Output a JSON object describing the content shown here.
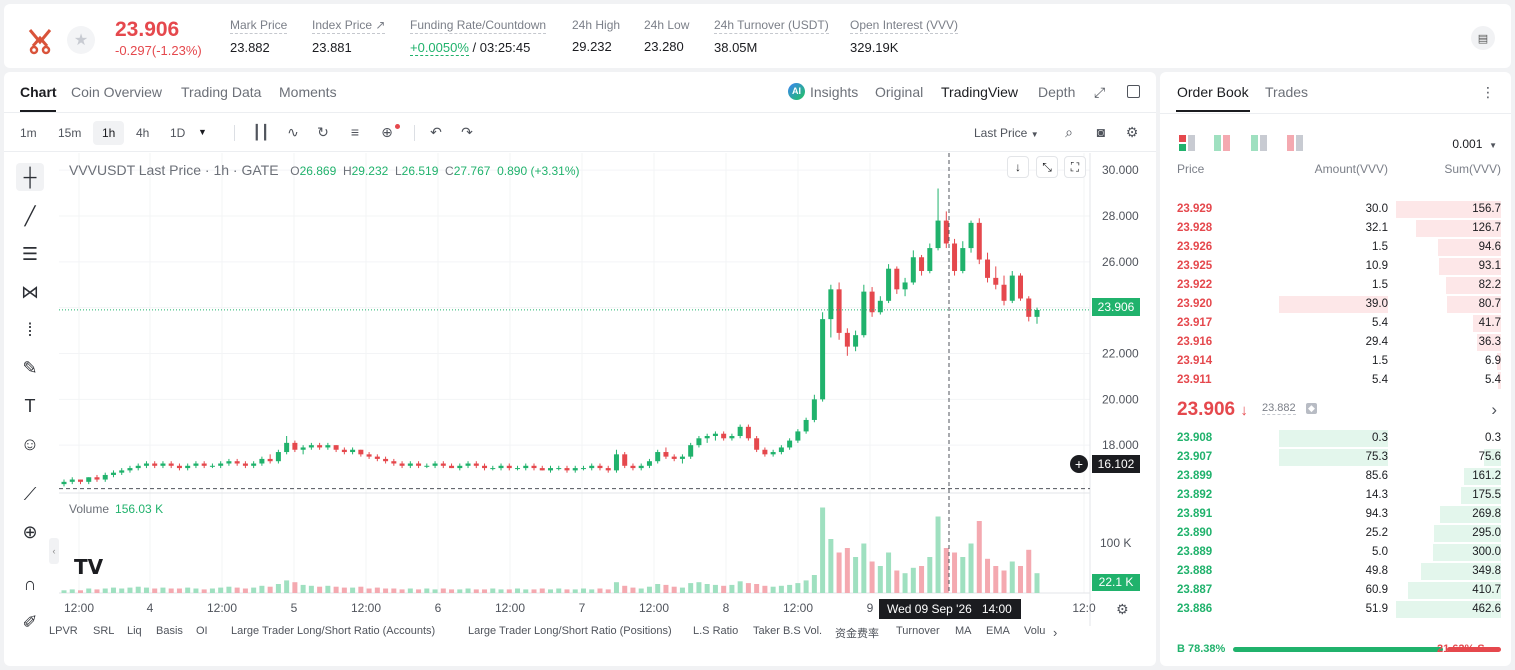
{
  "header": {
    "last_price": "23.906",
    "change": "-0.297(-1.23%)",
    "stats": [
      {
        "label": "Mark Price",
        "value": "23.882"
      },
      {
        "label": "Index Price ↗",
        "value": "23.881"
      },
      {
        "label": "Funding Rate/Countdown",
        "value_green": "+0.0050%",
        "value": " / 03:25:45"
      },
      {
        "label": "24h High",
        "value": "29.232"
      },
      {
        "label": "24h Low",
        "value": "23.280"
      },
      {
        "label": "24h Turnover (USDT)",
        "value": "38.05M"
      },
      {
        "label": "Open Interest (VVV)",
        "value": "329.19K"
      }
    ]
  },
  "chart_tabs": [
    "Chart",
    "Coin Overview",
    "Trading Data",
    "Moments"
  ],
  "view_tabs": [
    "Insights",
    "Original",
    "TradingView",
    "Depth"
  ],
  "timeframes": [
    "1m",
    "15m",
    "1h",
    "4h",
    "1D"
  ],
  "price_source": "Last Price",
  "legend": {
    "symbol": "VVVUSDT Last Price · 1h · GATE",
    "o_label": "O",
    "o": "26.869",
    "h_label": "H",
    "h": "29.232",
    "l_label": "L",
    "l": "26.519",
    "c_label": "C",
    "c": "27.767",
    "chg": "0.890 (+3.31%)"
  },
  "volume_legend": {
    "label": "Volume",
    "value": "156.03 K"
  },
  "crosshair": {
    "time": "Wed 09 Sep '26",
    "hour": "14:00",
    "price_label": "16.102"
  },
  "current_price_label": "23.906",
  "volume_axis_label": "100 K",
  "volume_current_label": "22.1 K",
  "indicators": [
    "LPVR",
    "SRL",
    "Liq",
    "Basis",
    "OI",
    "Large Trader Long/Short Ratio (Accounts)",
    "Large Trader Long/Short Ratio (Positions)",
    "L.S Ratio",
    "Taker B.S Vol.",
    "资金费率",
    "Turnover",
    "MA",
    "EMA",
    "Volu"
  ],
  "chart_data": {
    "type": "candlestick",
    "y_ticks": [
      "30.000",
      "28.000",
      "26.000",
      "24.000",
      "22.000",
      "20.000",
      "18.000"
    ],
    "ylim": [
      16.0,
      30.4
    ],
    "x_ticks": [
      "12:00",
      "4",
      "12:00",
      "5",
      "12:00",
      "6",
      "12:00",
      "7",
      "12:00",
      "8",
      "12:00",
      "9",
      "12:0"
    ],
    "candles": [
      [
        16.3,
        16.5,
        16.2,
        16.4
      ],
      [
        16.4,
        16.6,
        16.3,
        16.5
      ],
      [
        16.5,
        16.5,
        16.3,
        16.4
      ],
      [
        16.4,
        16.6,
        16.3,
        16.6
      ],
      [
        16.6,
        16.7,
        16.4,
        16.5
      ],
      [
        16.5,
        16.8,
        16.4,
        16.7
      ],
      [
        16.7,
        16.9,
        16.6,
        16.8
      ],
      [
        16.8,
        17.0,
        16.7,
        16.9
      ],
      [
        16.9,
        17.1,
        16.8,
        17.0
      ],
      [
        17.0,
        17.2,
        16.9,
        17.1
      ],
      [
        17.1,
        17.3,
        17.0,
        17.2
      ],
      [
        17.2,
        17.3,
        17.0,
        17.1
      ],
      [
        17.1,
        17.3,
        17.0,
        17.2
      ],
      [
        17.2,
        17.3,
        17.0,
        17.1
      ],
      [
        17.1,
        17.2,
        16.9,
        17.0
      ],
      [
        17.0,
        17.2,
        16.9,
        17.1
      ],
      [
        17.1,
        17.3,
        17.0,
        17.2
      ],
      [
        17.2,
        17.3,
        17.0,
        17.1
      ],
      [
        17.1,
        17.2,
        17.0,
        17.1
      ],
      [
        17.1,
        17.3,
        17.0,
        17.2
      ],
      [
        17.2,
        17.4,
        17.1,
        17.3
      ],
      [
        17.3,
        17.4,
        17.1,
        17.2
      ],
      [
        17.2,
        17.3,
        17.0,
        17.1
      ],
      [
        17.1,
        17.3,
        17.0,
        17.2
      ],
      [
        17.2,
        17.5,
        17.1,
        17.4
      ],
      [
        17.4,
        17.6,
        17.2,
        17.3
      ],
      [
        17.3,
        17.8,
        17.2,
        17.7
      ],
      [
        17.7,
        18.4,
        17.6,
        18.1
      ],
      [
        18.1,
        18.2,
        17.7,
        17.8
      ],
      [
        17.8,
        18.0,
        17.6,
        17.9
      ],
      [
        17.9,
        18.1,
        17.8,
        18.0
      ],
      [
        18.0,
        18.1,
        17.8,
        17.9
      ],
      [
        17.9,
        18.1,
        17.8,
        18.0
      ],
      [
        18.0,
        18.0,
        17.7,
        17.8
      ],
      [
        17.8,
        17.9,
        17.6,
        17.7
      ],
      [
        17.7,
        17.9,
        17.6,
        17.8
      ],
      [
        17.8,
        17.8,
        17.5,
        17.6
      ],
      [
        17.6,
        17.7,
        17.4,
        17.5
      ],
      [
        17.5,
        17.6,
        17.3,
        17.4
      ],
      [
        17.4,
        17.5,
        17.2,
        17.3
      ],
      [
        17.3,
        17.4,
        17.1,
        17.2
      ],
      [
        17.2,
        17.3,
        17.0,
        17.1
      ],
      [
        17.1,
        17.3,
        17.0,
        17.2
      ],
      [
        17.2,
        17.3,
        17.0,
        17.1
      ],
      [
        17.1,
        17.2,
        17.0,
        17.1
      ],
      [
        17.1,
        17.3,
        17.0,
        17.2
      ],
      [
        17.2,
        17.3,
        17.0,
        17.1
      ],
      [
        17.1,
        17.2,
        17.0,
        17.0
      ],
      [
        17.0,
        17.2,
        16.9,
        17.1
      ],
      [
        17.1,
        17.3,
        17.0,
        17.2
      ],
      [
        17.2,
        17.3,
        17.0,
        17.1
      ],
      [
        17.1,
        17.2,
        16.9,
        17.0
      ],
      [
        17.0,
        17.1,
        16.9,
        17.0
      ],
      [
        17.0,
        17.2,
        16.9,
        17.1
      ],
      [
        17.1,
        17.2,
        16.9,
        17.0
      ],
      [
        17.0,
        17.1,
        16.9,
        17.0
      ],
      [
        17.0,
        17.2,
        16.9,
        17.1
      ],
      [
        17.1,
        17.2,
        16.9,
        17.0
      ],
      [
        17.0,
        17.1,
        16.9,
        16.9
      ],
      [
        16.9,
        17.1,
        16.8,
        17.0
      ],
      [
        17.0,
        17.1,
        16.9,
        17.0
      ],
      [
        17.0,
        17.1,
        16.8,
        16.9
      ],
      [
        16.9,
        17.1,
        16.8,
        17.0
      ],
      [
        17.0,
        17.1,
        16.9,
        17.0
      ],
      [
        17.0,
        17.2,
        16.9,
        17.1
      ],
      [
        17.1,
        17.2,
        16.9,
        17.0
      ],
      [
        17.0,
        17.1,
        16.8,
        16.9
      ],
      [
        16.9,
        17.8,
        16.8,
        17.6
      ],
      [
        17.6,
        17.7,
        17.0,
        17.1
      ],
      [
        17.1,
        17.2,
        16.9,
        17.0
      ],
      [
        17.0,
        17.2,
        16.9,
        17.1
      ],
      [
        17.1,
        17.4,
        17.0,
        17.3
      ],
      [
        17.3,
        17.8,
        17.2,
        17.7
      ],
      [
        17.7,
        17.9,
        17.4,
        17.5
      ],
      [
        17.5,
        17.6,
        17.3,
        17.4
      ],
      [
        17.4,
        17.6,
        17.2,
        17.5
      ],
      [
        17.5,
        18.1,
        17.4,
        18.0
      ],
      [
        18.0,
        18.4,
        17.9,
        18.3
      ],
      [
        18.3,
        18.5,
        18.1,
        18.4
      ],
      [
        18.4,
        18.6,
        18.2,
        18.5
      ],
      [
        18.5,
        18.6,
        18.2,
        18.3
      ],
      [
        18.3,
        18.5,
        18.2,
        18.4
      ],
      [
        18.4,
        18.9,
        18.3,
        18.8
      ],
      [
        18.8,
        18.9,
        18.2,
        18.3
      ],
      [
        18.3,
        18.4,
        17.7,
        17.8
      ],
      [
        17.8,
        17.9,
        17.5,
        17.6
      ],
      [
        17.6,
        17.8,
        17.5,
        17.7
      ],
      [
        17.7,
        18.0,
        17.6,
        17.9
      ],
      [
        17.9,
        18.3,
        17.8,
        18.2
      ],
      [
        18.2,
        18.7,
        18.1,
        18.6
      ],
      [
        18.6,
        19.2,
        18.5,
        19.1
      ],
      [
        19.1,
        20.2,
        19.0,
        20.0
      ],
      [
        20.0,
        23.8,
        19.9,
        23.5
      ],
      [
        23.5,
        25.0,
        22.7,
        24.8
      ],
      [
        24.8,
        25.1,
        22.6,
        22.9
      ],
      [
        22.9,
        23.1,
        21.9,
        22.3
      ],
      [
        22.3,
        23.0,
        22.1,
        22.8
      ],
      [
        22.8,
        25.0,
        22.7,
        24.7
      ],
      [
        24.7,
        24.9,
        23.6,
        23.8
      ],
      [
        23.8,
        24.5,
        23.7,
        24.3
      ],
      [
        24.3,
        25.9,
        24.2,
        25.7
      ],
      [
        25.7,
        25.8,
        24.6,
        24.8
      ],
      [
        24.8,
        25.3,
        24.5,
        25.1
      ],
      [
        25.1,
        26.5,
        25.0,
        26.2
      ],
      [
        26.2,
        26.3,
        25.4,
        25.6
      ],
      [
        25.6,
        26.8,
        25.5,
        26.6
      ],
      [
        26.6,
        29.2,
        26.5,
        27.8
      ],
      [
        27.8,
        28.2,
        26.6,
        26.8
      ],
      [
        26.8,
        27.0,
        25.4,
        25.6
      ],
      [
        25.6,
        26.9,
        25.5,
        26.6
      ],
      [
        26.6,
        27.8,
        26.4,
        27.7
      ],
      [
        27.7,
        27.9,
        25.9,
        26.1
      ],
      [
        26.1,
        26.4,
        25.1,
        25.3
      ],
      [
        25.3,
        25.8,
        24.8,
        25.0
      ],
      [
        25.0,
        25.4,
        24.1,
        24.3
      ],
      [
        24.3,
        25.6,
        24.2,
        25.4
      ],
      [
        25.4,
        25.5,
        24.3,
        24.4
      ],
      [
        24.4,
        24.5,
        23.4,
        23.6
      ],
      [
        23.6,
        24.0,
        23.3,
        23.9
      ]
    ],
    "volumes": [
      3,
      4,
      3,
      5,
      4,
      5,
      6,
      5,
      6,
      7,
      6,
      5,
      6,
      5,
      5,
      6,
      5,
      4,
      5,
      6,
      7,
      6,
      5,
      6,
      8,
      7,
      10,
      14,
      12,
      9,
      8,
      7,
      8,
      7,
      6,
      6,
      7,
      5,
      6,
      5,
      5,
      4,
      5,
      4,
      5,
      4,
      5,
      4,
      4,
      5,
      4,
      4,
      5,
      4,
      4,
      5,
      4,
      4,
      5,
      4,
      5,
      4,
      4,
      5,
      4,
      5,
      4,
      12,
      8,
      6,
      5,
      7,
      10,
      9,
      7,
      6,
      11,
      12,
      10,
      9,
      8,
      9,
      13,
      11,
      10,
      8,
      7,
      8,
      9,
      11,
      14,
      20,
      95,
      60,
      45,
      50,
      40,
      55,
      35,
      30,
      45,
      25,
      22,
      28,
      30,
      40,
      85,
      50,
      45,
      40,
      55,
      80,
      38,
      30,
      25,
      35,
      30,
      48,
      22
    ]
  },
  "orderbook": {
    "tabs": [
      "Order Book",
      "Trades"
    ],
    "precision": "0.001",
    "headers": [
      "Price",
      "Amount(VVV)",
      "Sum(VVV)"
    ],
    "asks": [
      {
        "price": "23.929",
        "amount": "30.0",
        "sum": "156.7",
        "depth": 1.0,
        "amt_frac": 0.0
      },
      {
        "price": "23.928",
        "amount": "32.1",
        "sum": "126.7",
        "depth": 0.81,
        "amt_frac": 0.0
      },
      {
        "price": "23.926",
        "amount": "1.5",
        "sum": "94.6",
        "depth": 0.6,
        "amt_frac": 0.0
      },
      {
        "price": "23.925",
        "amount": "10.9",
        "sum": "93.1",
        "depth": 0.59,
        "amt_frac": 0.0
      },
      {
        "price": "23.922",
        "amount": "1.5",
        "sum": "82.2",
        "depth": 0.52,
        "amt_frac": 0.0
      },
      {
        "price": "23.920",
        "amount": "39.0",
        "sum": "80.7",
        "depth": 0.51,
        "amt_frac": 0.52
      },
      {
        "price": "23.917",
        "amount": "5.4",
        "sum": "41.7",
        "depth": 0.27,
        "amt_frac": 0.0
      },
      {
        "price": "23.916",
        "amount": "29.4",
        "sum": "36.3",
        "depth": 0.23,
        "amt_frac": 0.0
      },
      {
        "price": "23.914",
        "amount": "1.5",
        "sum": "6.9",
        "depth": 0.04,
        "amt_frac": 0.0
      },
      {
        "price": "23.911",
        "amount": "5.4",
        "sum": "5.4",
        "depth": 0.03,
        "amt_frac": 0.0
      }
    ],
    "mid_price": "23.906",
    "mid_mark": "23.882",
    "bids": [
      {
        "price": "23.908",
        "amount": "0.3",
        "sum": "0.3",
        "depth": 0.0,
        "amt_frac": 0.52
      },
      {
        "price": "23.907",
        "amount": "75.3",
        "sum": "75.6",
        "depth": 0.16,
        "amt_frac": 0.52
      },
      {
        "price": "23.899",
        "amount": "85.6",
        "sum": "161.2",
        "depth": 0.35,
        "amt_frac": 0.0
      },
      {
        "price": "23.892",
        "amount": "14.3",
        "sum": "175.5",
        "depth": 0.38,
        "amt_frac": 0.0
      },
      {
        "price": "23.891",
        "amount": "94.3",
        "sum": "269.8",
        "depth": 0.58,
        "amt_frac": 0.0
      },
      {
        "price": "23.890",
        "amount": "25.2",
        "sum": "295.0",
        "depth": 0.64,
        "amt_frac": 0.0
      },
      {
        "price": "23.889",
        "amount": "5.0",
        "sum": "300.0",
        "depth": 0.65,
        "amt_frac": 0.0
      },
      {
        "price": "23.888",
        "amount": "49.8",
        "sum": "349.8",
        "depth": 0.76,
        "amt_frac": 0.0
      },
      {
        "price": "23.887",
        "amount": "60.9",
        "sum": "410.7",
        "depth": 0.89,
        "amt_frac": 0.0
      },
      {
        "price": "23.886",
        "amount": "51.9",
        "sum": "462.6",
        "depth": 1.0,
        "amt_frac": 0.0
      }
    ],
    "buy_label": "B 78.38%",
    "sell_label": "21.62% S",
    "buy_fraction": 0.7838
  },
  "colors": {
    "up": "#20b26c",
    "down": "#e5484d",
    "up_light": "#9fe0c0",
    "down_light": "#f4a9b0"
  }
}
